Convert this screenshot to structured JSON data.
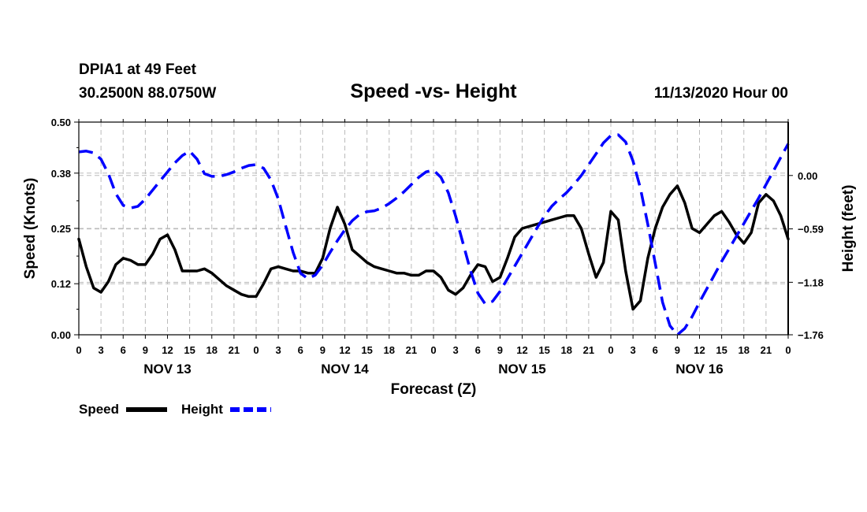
{
  "header": {
    "station": "DPIA1 at 49 Feet",
    "location": "30.2500N 88.0750W",
    "title": "Speed -vs- Height",
    "date": "11/13/2020 Hour 00"
  },
  "chart_data": {
    "type": "line",
    "title": "Speed -vs- Height",
    "xlabel": "Forecast (Z)",
    "ylabel": "Speed (Knots)",
    "ylabel_right": "Height (feet)",
    "x_hours_range": [
      0,
      96
    ],
    "x_tick_labels": [
      "0",
      "3",
      "6",
      "9",
      "12",
      "15",
      "18",
      "21",
      "0",
      "3",
      "6",
      "9",
      "12",
      "15",
      "18",
      "21",
      "0",
      "3",
      "6",
      "9",
      "12",
      "15",
      "18",
      "21",
      "0",
      "3",
      "6",
      "9",
      "12",
      "15",
      "18",
      "21",
      "0"
    ],
    "day_labels": [
      {
        "label": "NOV 13",
        "center_hour": 12
      },
      {
        "label": "NOV 14",
        "center_hour": 36
      },
      {
        "label": "NOV 15",
        "center_hour": 60
      },
      {
        "label": "NOV 16",
        "center_hour": 84
      }
    ],
    "ylim_left": [
      0,
      0.5
    ],
    "y_ticks_left": [
      0.0,
      0.12,
      0.25,
      0.38,
      0.5
    ],
    "y_tick_labels_left": [
      "0.00",
      "0.12",
      "0.25",
      "0.38",
      "0.50"
    ],
    "ylim_right": [
      -1.76,
      0.59
    ],
    "y_ticks_right": [
      -1.76,
      -1.18,
      -0.59,
      0.0
    ],
    "y_tick_labels_right": [
      "−1.76",
      "−1.18",
      "−0.59",
      "0.00"
    ],
    "grid": true,
    "legend_position": "bottom-left",
    "series": [
      {
        "name": "Speed",
        "color": "#000000",
        "style": "solid",
        "axis": "left",
        "x": [
          0,
          1,
          2,
          3,
          4,
          5,
          6,
          7,
          8,
          9,
          10,
          11,
          12,
          13,
          14,
          15,
          16,
          17,
          18,
          19,
          20,
          21,
          22,
          23,
          24,
          25,
          26,
          27,
          28,
          29,
          30,
          31,
          32,
          33,
          34,
          35,
          36,
          37,
          38,
          39,
          40,
          41,
          42,
          43,
          44,
          45,
          46,
          47,
          48,
          49,
          50,
          51,
          52,
          53,
          54,
          55,
          56,
          57,
          58,
          59,
          60,
          61,
          62,
          63,
          64,
          65,
          66,
          67,
          68,
          69,
          70,
          71,
          72,
          73,
          74,
          75,
          76,
          77,
          78,
          79,
          80,
          81,
          82,
          83,
          84,
          85,
          86,
          87,
          88,
          89,
          90,
          91,
          92,
          93,
          94,
          95,
          96
        ],
        "y": [
          0.225,
          0.16,
          0.11,
          0.1,
          0.125,
          0.165,
          0.18,
          0.175,
          0.165,
          0.165,
          0.19,
          0.225,
          0.235,
          0.2,
          0.15,
          0.15,
          0.15,
          0.155,
          0.145,
          0.13,
          0.115,
          0.105,
          0.095,
          0.09,
          0.09,
          0.12,
          0.155,
          0.16,
          0.155,
          0.15,
          0.15,
          0.145,
          0.145,
          0.18,
          0.25,
          0.3,
          0.26,
          0.2,
          0.185,
          0.17,
          0.16,
          0.155,
          0.15,
          0.145,
          0.145,
          0.14,
          0.14,
          0.15,
          0.15,
          0.135,
          0.105,
          0.095,
          0.11,
          0.14,
          0.165,
          0.16,
          0.125,
          0.135,
          0.18,
          0.23,
          0.25,
          0.255,
          0.26,
          0.265,
          0.27,
          0.275,
          0.28,
          0.28,
          0.25,
          0.19,
          0.135,
          0.17,
          0.29,
          0.27,
          0.15,
          0.06,
          0.08,
          0.18,
          0.25,
          0.3,
          0.33,
          0.35,
          0.31,
          0.25,
          0.24,
          0.26,
          0.28,
          0.29,
          0.265,
          0.235,
          0.215,
          0.24,
          0.31,
          0.33,
          0.315,
          0.28,
          0.225
        ]
      },
      {
        "name": "Height",
        "color": "#0000ff",
        "style": "dashed",
        "axis": "right",
        "x": [
          0,
          1,
          2,
          3,
          4,
          5,
          6,
          7,
          8,
          9,
          10,
          11,
          12,
          13,
          14,
          15,
          16,
          17,
          18,
          19,
          20,
          21,
          22,
          23,
          24,
          25,
          26,
          27,
          28,
          29,
          30,
          31,
          32,
          33,
          34,
          35,
          36,
          37,
          38,
          39,
          40,
          41,
          42,
          43,
          44,
          45,
          46,
          47,
          48,
          49,
          50,
          51,
          52,
          53,
          54,
          55,
          56,
          57,
          58,
          59,
          60,
          61,
          62,
          63,
          64,
          65,
          66,
          67,
          68,
          69,
          70,
          71,
          72,
          73,
          74,
          75,
          76,
          77,
          78,
          79,
          80,
          81,
          82,
          83,
          84,
          85,
          86,
          87,
          88,
          89,
          90,
          91,
          92,
          93,
          94,
          95,
          96
        ],
        "y": [
          0.26,
          0.27,
          0.25,
          0.18,
          0.02,
          -0.2,
          -0.33,
          -0.36,
          -0.34,
          -0.26,
          -0.16,
          -0.06,
          0.04,
          0.14,
          0.22,
          0.27,
          0.18,
          0.02,
          -0.01,
          -0.01,
          0.01,
          0.04,
          0.08,
          0.11,
          0.12,
          0.08,
          -0.05,
          -0.26,
          -0.56,
          -0.85,
          -1.08,
          -1.14,
          -1.1,
          -0.99,
          -0.85,
          -0.72,
          -0.6,
          -0.5,
          -0.43,
          -0.4,
          -0.39,
          -0.36,
          -0.31,
          -0.25,
          -0.18,
          -0.1,
          -0.02,
          0.04,
          0.06,
          -0.02,
          -0.19,
          -0.45,
          -0.75,
          -1.05,
          -1.3,
          -1.42,
          -1.39,
          -1.28,
          -1.14,
          -1.0,
          -0.86,
          -0.72,
          -0.58,
          -0.45,
          -0.34,
          -0.26,
          -0.19,
          -0.1,
          0.0,
          0.12,
          0.24,
          0.36,
          0.44,
          0.45,
          0.37,
          0.16,
          -0.14,
          -0.54,
          -0.97,
          -1.4,
          -1.66,
          -1.76,
          -1.69,
          -1.56,
          -1.4,
          -1.25,
          -1.1,
          -0.95,
          -0.81,
          -0.67,
          -0.53,
          -0.39,
          -0.25,
          -0.1,
          0.05,
          0.2,
          0.35
        ]
      }
    ]
  }
}
